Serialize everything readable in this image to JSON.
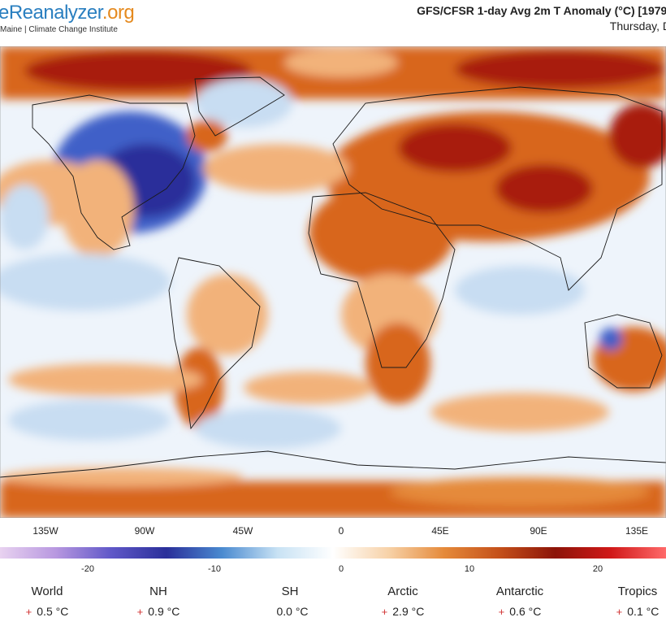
{
  "header": {
    "logo_main": "eReanalyzer",
    "logo_tld": ".org",
    "subline": "Maine | Climate Change Institute",
    "title": "GFS/CFSR 1-day Avg 2m T Anomaly (°C) [1979-",
    "date": "Thursday, D"
  },
  "map": {
    "longitude_labels": [
      "135W",
      "90W",
      "45W",
      "0",
      "45E",
      "90E",
      "135E"
    ],
    "colors": {
      "strong_warm": "#a81c08",
      "warm": "#d8661a",
      "mild_warm": "#f2b27a",
      "neutral": "#f8f8f8",
      "mild_cold": "#c8ddf2",
      "cold": "#4060c8",
      "strong_cold": "#2a2f9a",
      "coastline": "#1a1a1a"
    }
  },
  "colorbar": {
    "tick_labels": [
      "-20",
      "-10",
      "0",
      "10",
      "20"
    ],
    "stops": [
      "#e8d2f0",
      "#b898e0",
      "#6058c8",
      "#2a2f9a",
      "#4a8ad0",
      "#c8e2f4",
      "#ffffff",
      "#f7d2a8",
      "#e58a3a",
      "#c4501a",
      "#8c1408",
      "#d01818",
      "#ff6a6a"
    ]
  },
  "stats": [
    {
      "region": "World",
      "sign": "+",
      "value": "0.5 °C"
    },
    {
      "region": "NH",
      "sign": "+",
      "value": "0.9 °C"
    },
    {
      "region": "SH",
      "sign": "",
      "value": "0.0 °C"
    },
    {
      "region": "Arctic",
      "sign": "+",
      "value": "2.9 °C"
    },
    {
      "region": "Antarctic",
      "sign": "+",
      "value": "0.6 °C"
    },
    {
      "region": "Tropics",
      "sign": "+",
      "value": "0.1 °C"
    }
  ]
}
